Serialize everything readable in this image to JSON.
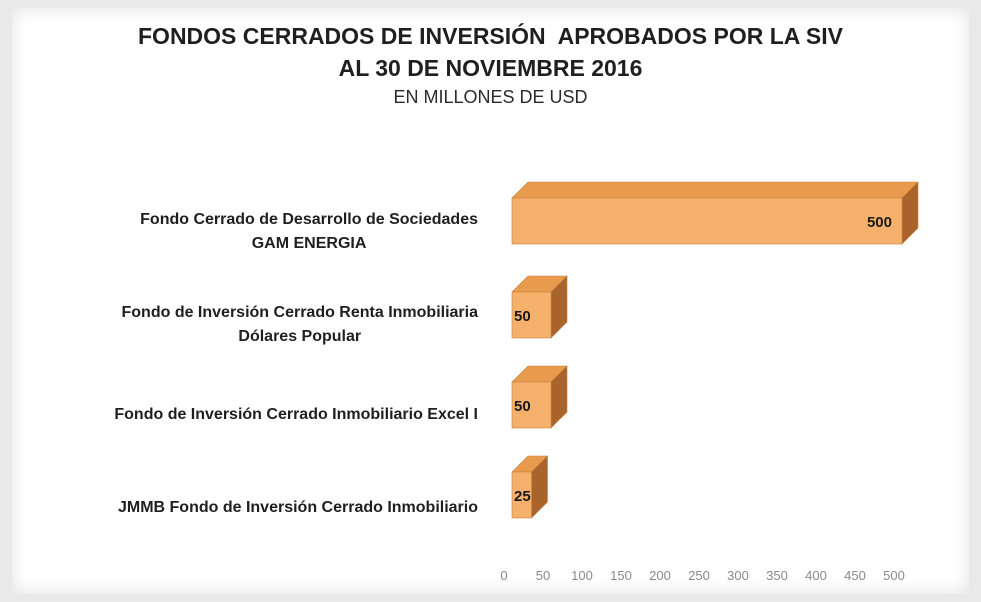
{
  "chart_data": {
    "type": "bar",
    "orientation": "horizontal",
    "style": "3d",
    "title_lines": [
      "FONDOS CERRADOS DE INVERSIÓN  APROBADOS POR LA SIV",
      "AL 30 DE NOVIEMBRE 2016"
    ],
    "subtitle": "EN MILLONES DE USD",
    "categories": [
      [
        "Fondo Cerrado de Desarrollo de Sociedades",
        "GAM ENERGIA"
      ],
      [
        "Fondo de Inversión Cerrado Renta Inmobiliaria",
        "Dólares Popular"
      ],
      [
        "Fondo de Inversión Cerrado Inmobiliario Excel I"
      ],
      [
        "JMMB Fondo de Inversión Cerrado Inmobiliario"
      ]
    ],
    "values": [
      500,
      50,
      50,
      25
    ],
    "data_labels": [
      "500",
      "50",
      "50",
      "25"
    ],
    "xlim": [
      0,
      500
    ],
    "xticks": [
      "0",
      "50",
      "100",
      "150",
      "200",
      "250",
      "300",
      "350",
      "400",
      "450",
      "500"
    ],
    "grid": false,
    "legend": "none",
    "colors": {
      "bar_front": "#f5b16c",
      "bar_top": "#e89a4d",
      "bar_side": "#a8642b",
      "bar_edge": "#c98040"
    }
  }
}
